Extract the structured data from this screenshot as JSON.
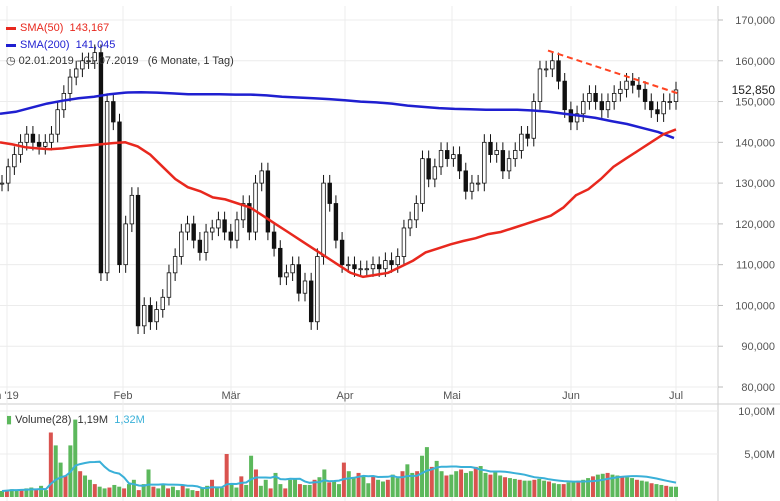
{
  "legend": {
    "sma50_label": "SMA(50)",
    "sma50_value": "143,167",
    "sma50_color": "#e8281e",
    "sma200_label": "SMA(200)",
    "sma200_value": "141,045",
    "sma200_color": "#1f1fd0",
    "range_text": "02.01.2019 - 01.07.2019",
    "period_text": "(6 Monate, 1 Tag)",
    "volume_label": "Volume(28)",
    "volume_value": "1,19M",
    "volume_avg": "1,32M",
    "volume_avg_color": "#3ab0d8"
  },
  "chart_data": {
    "type": "candlestick",
    "last_price": "152,850",
    "y_ticks": [
      "170,000",
      "160,000",
      "150,000",
      "140,000",
      "130,000",
      "120,000",
      "110,000",
      "100,000",
      "90,000",
      "80,000"
    ],
    "y_range": [
      80000,
      170000
    ],
    "x_ticks": [
      "n '19",
      "Feb",
      "Mär",
      "Apr",
      "Mai",
      "Jun",
      "Jul"
    ],
    "volume_ticks": [
      "10,00M",
      "5,00M"
    ],
    "volume_range": [
      0,
      10000000
    ],
    "series": [
      {
        "name": "Close",
        "values": [
          130000,
          134000,
          137000,
          140000,
          142000,
          140000,
          139000,
          140000,
          142000,
          148000,
          152000,
          156000,
          158000,
          160000,
          160000,
          162000,
          108000,
          150000,
          145000,
          110000,
          120000,
          127000,
          95000,
          100000,
          96000,
          99000,
          102000,
          108000,
          112000,
          118000,
          120000,
          116000,
          113000,
          118000,
          119000,
          121000,
          118000,
          116000,
          121000,
          125000,
          118000,
          130000,
          133000,
          118000,
          114000,
          107000,
          108000,
          110000,
          103000,
          106000,
          96000,
          112000,
          130000,
          125000,
          116000,
          110000,
          110000,
          109000,
          109000,
          109000,
          110000,
          109000,
          111000,
          110000,
          112000,
          119000,
          121000,
          125000,
          136000,
          131000,
          134000,
          138000,
          136000,
          137000,
          133000,
          128000,
          130000,
          130000,
          140000,
          137000,
          138000,
          133000,
          136000,
          138000,
          142000,
          141000,
          150000,
          158000,
          158000,
          160000,
          155000,
          148000,
          145000,
          147000,
          150000,
          152000,
          150000,
          148000,
          150000,
          152000,
          153000,
          155000,
          154000,
          153000,
          150000,
          148000,
          147000,
          150000,
          150000,
          152850
        ]
      },
      {
        "name": "SMA(50)",
        "values": [
          140000,
          139500,
          138800,
          138500,
          138300,
          138500,
          138900,
          139200,
          139500,
          139800,
          140000,
          139000,
          137000,
          134000,
          131000,
          129000,
          128000,
          126500,
          126000,
          125000,
          124000,
          122000,
          120000,
          118000,
          116000,
          114000,
          112000,
          110000,
          108000,
          107000,
          107500,
          108000,
          109500,
          111000,
          113000,
          114000,
          115000,
          115800,
          116500,
          117500,
          118000,
          119000,
          120000,
          121000,
          122000,
          124000,
          127000,
          128500,
          131000,
          134000,
          136000,
          138000,
          140000,
          142000,
          143167
        ]
      },
      {
        "name": "SMA(200)",
        "values": [
          147000,
          147500,
          148500,
          149500,
          150200,
          150800,
          151200,
          151800,
          152200,
          152300,
          152200,
          152000,
          151800,
          151800,
          151800,
          151700,
          151700,
          151500,
          151200,
          151000,
          150800,
          150600,
          150300,
          150000,
          149800,
          149500,
          149000,
          148700,
          148400,
          148200,
          148100,
          148000,
          148000,
          148000,
          147800,
          147500,
          147000,
          146500,
          146000,
          145200,
          144500,
          143500,
          142500,
          141045
        ]
      },
      {
        "name": "Volume(28)",
        "values": [
          700000,
          800000,
          900000,
          800000,
          900000,
          1000000,
          1100000,
          900000,
          1300000,
          800000,
          7500000,
          6000000,
          4000000,
          2500000,
          6000000,
          9000000,
          3000000,
          2500000,
          2000000,
          1500000,
          1200000,
          1000000,
          1100000,
          1400000,
          1200000,
          1000000,
          1500000,
          2000000,
          800000,
          1500000,
          3200000,
          1200000,
          1000000,
          1400000,
          1000000,
          1200000,
          800000,
          1300000,
          1000000,
          800000,
          700000,
          1000000,
          1300000,
          2000000,
          1200000,
          1100000,
          5000000,
          1400000,
          1100000,
          2400000,
          1400000,
          4800000,
          3200000,
          1300000,
          2000000,
          1000000,
          2800000,
          1500000,
          1000000,
          2000000,
          2200000,
          1500000,
          1400000,
          1400000,
          2000000,
          2300000,
          3200000,
          1700000,
          1800000,
          1500000,
          4000000,
          3000000,
          2200000,
          2800000,
          2500000,
          1600000,
          2500000,
          2000000,
          1800000,
          2000000,
          2600000,
          2200000,
          3000000,
          3800000,
          2800000,
          3000000,
          4800000,
          5800000,
          3500000,
          4200000,
          3000000,
          2500000,
          2600000,
          3000000,
          3200000,
          2800000,
          3000000,
          3500000,
          3600000,
          2800000,
          2600000,
          3000000,
          2500000,
          2300000,
          2200000,
          2100000,
          2000000,
          1900000,
          1900000,
          2000000,
          2100000,
          1900000,
          1800000,
          1600000,
          1500000,
          1500000,
          1700000,
          1800000,
          1900000,
          2000000,
          2200000,
          2400000,
          2600000,
          2700000,
          2800000,
          2600000,
          2500000,
          2400000,
          2300000,
          2200000,
          2000000,
          1900000,
          1800000,
          1600000,
          1500000,
          1400000,
          1300000,
          1200000,
          1190000
        ]
      }
    ],
    "trendline": [
      162500,
      152000
    ],
    "candle_color": "#111111",
    "volume_up_color": "#5cb85c",
    "volume_down_color": "#d9534f",
    "sma50_color": "#e8281e",
    "sma200_color": "#1f1fd0",
    "trend_color": "#ff4422"
  }
}
